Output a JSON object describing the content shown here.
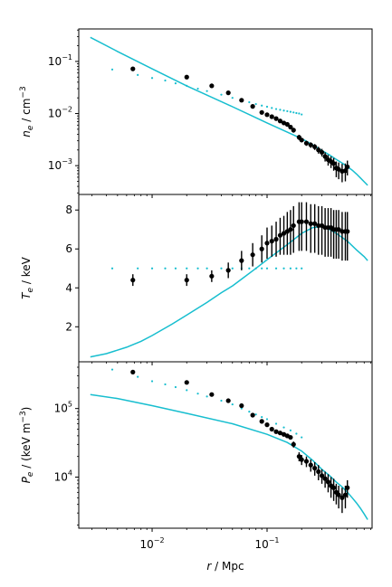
{
  "chart_data": [
    {
      "type": "scatter",
      "panel": "top",
      "ylabel_prefix": "n",
      "ylabel_sub": "e",
      "ylabel_unit": " / cm",
      "ylabel_sup": "−3",
      "yscale": "log",
      "xscale": "log",
      "xlim": [
        0.0023,
        0.82
      ],
      "ylim": [
        0.00028,
        0.42
      ],
      "yticks": [
        {
          "value": 0.1,
          "base": "10",
          "exp": "−1"
        },
        {
          "value": 0.01,
          "base": "10",
          "exp": "−2"
        },
        {
          "value": 0.001,
          "base": "10",
          "exp": "−3"
        }
      ],
      "series": [
        {
          "kind": "model_line",
          "color": "#17becf",
          "x": [
            0.0029,
            0.005,
            0.01,
            0.02,
            0.05,
            0.1,
            0.15,
            0.2,
            0.22,
            0.25,
            0.3,
            0.35,
            0.4,
            0.45,
            0.5,
            0.55,
            0.6,
            0.65,
            0.7,
            0.75
          ],
          "y": [
            0.29,
            0.155,
            0.072,
            0.034,
            0.0135,
            0.0066,
            0.0044,
            0.0033,
            0.00295,
            0.0025,
            0.00195,
            0.0016,
            0.00132,
            0.00112,
            0.00096,
            0.00082,
            0.00069,
            0.00058,
            0.00049,
            0.00042
          ]
        },
        {
          "kind": "model_points",
          "color": "#17becf",
          "x": [
            0.0045,
            0.0075,
            0.01,
            0.013,
            0.016,
            0.02,
            0.025,
            0.03,
            0.04,
            0.05,
            0.06,
            0.07,
            0.08,
            0.09,
            0.1,
            0.11,
            0.12,
            0.13,
            0.14,
            0.15,
            0.16,
            0.17,
            0.18,
            0.19,
            0.2
          ],
          "y": [
            0.07,
            0.055,
            0.048,
            0.043,
            0.038,
            0.034,
            0.03,
            0.027,
            0.023,
            0.02,
            0.018,
            0.0165,
            0.0152,
            0.0142,
            0.0135,
            0.0128,
            0.0122,
            0.0118,
            0.0114,
            0.0111,
            0.0108,
            0.0105,
            0.0102,
            0.01,
            0.0096
          ]
        },
        {
          "kind": "data",
          "color": "#000000",
          "x": [
            0.0068,
            0.02,
            0.033,
            0.046,
            0.06,
            0.075,
            0.09,
            0.1,
            0.11,
            0.12,
            0.13,
            0.14,
            0.15,
            0.16,
            0.17,
            0.19,
            0.2,
            0.22,
            0.24,
            0.26,
            0.28,
            0.3,
            0.32,
            0.34,
            0.36,
            0.38,
            0.4,
            0.42,
            0.45,
            0.48,
            0.5
          ],
          "y": [
            0.072,
            0.05,
            0.034,
            0.025,
            0.018,
            0.0137,
            0.0105,
            0.0095,
            0.0087,
            0.008,
            0.0072,
            0.0066,
            0.0062,
            0.0055,
            0.0048,
            0.0035,
            0.0031,
            0.0027,
            0.0025,
            0.0023,
            0.002,
            0.0018,
            0.0015,
            0.0013,
            0.0012,
            0.0011,
            0.0009,
            0.00085,
            0.00078,
            0.0008,
            0.00095
          ],
          "err_lo": [
            0,
            0,
            0,
            0,
            0,
            0,
            0,
            0,
            0,
            0,
            0,
            0,
            0,
            0.0005,
            0.0005,
            0.0004,
            0.0003,
            0.0003,
            0.0003,
            0.0003,
            0.0003,
            0.0003,
            0.0003,
            0.0003,
            0.0003,
            0.0003,
            0.0003,
            0.0003,
            0.0003,
            0.0003,
            0.0003
          ],
          "err_hi": [
            0,
            0,
            0,
            0,
            0,
            0,
            0,
            0,
            0,
            0,
            0,
            0,
            0,
            0.0005,
            0.0005,
            0.0004,
            0.0003,
            0.0003,
            0.0003,
            0.0003,
            0.0003,
            0.0003,
            0.0003,
            0.0003,
            0.0003,
            0.0003,
            0.0003,
            0.0003,
            0.0003,
            0.0003,
            0.0003
          ]
        }
      ]
    },
    {
      "type": "scatter",
      "panel": "middle",
      "ylabel_prefix": "T",
      "ylabel_sub": "e",
      "ylabel_unit": " / keV",
      "yscale": "linear",
      "xscale": "log",
      "xlim": [
        0.0023,
        0.82
      ],
      "ylim": [
        0.2,
        8.8
      ],
      "yticks": [
        {
          "value": 2,
          "label": "2"
        },
        {
          "value": 4,
          "label": "4"
        },
        {
          "value": 6,
          "label": "6"
        },
        {
          "value": 8,
          "label": "8"
        }
      ],
      "series": [
        {
          "kind": "model_line",
          "color": "#17becf",
          "x": [
            0.0029,
            0.004,
            0.006,
            0.008,
            0.01,
            0.015,
            0.02,
            0.03,
            0.04,
            0.05,
            0.06,
            0.08,
            0.1,
            0.13,
            0.16,
            0.2,
            0.25,
            0.3,
            0.35,
            0.4,
            0.5,
            0.6,
            0.7,
            0.75
          ],
          "y": [
            0.45,
            0.62,
            0.95,
            1.25,
            1.55,
            2.15,
            2.6,
            3.25,
            3.75,
            4.1,
            4.45,
            5.0,
            5.45,
            5.95,
            6.35,
            6.8,
            7.1,
            7.15,
            7.0,
            6.8,
            6.4,
            5.95,
            5.6,
            5.4
          ]
        },
        {
          "kind": "model_points",
          "color": "#17becf",
          "x": [
            0.0045,
            0.0075,
            0.01,
            0.013,
            0.016,
            0.02,
            0.025,
            0.03,
            0.04,
            0.05,
            0.06,
            0.07,
            0.08,
            0.09,
            0.1,
            0.12,
            0.14,
            0.16,
            0.18,
            0.2
          ],
          "y": [
            5.0,
            5.0,
            5.0,
            5.0,
            5.0,
            5.0,
            5.0,
            5.0,
            5.0,
            5.0,
            5.0,
            5.0,
            5.0,
            5.0,
            5.0,
            5.0,
            5.0,
            5.0,
            5.0,
            5.0
          ]
        },
        {
          "kind": "data",
          "color": "#000000",
          "x": [
            0.0068,
            0.02,
            0.033,
            0.046,
            0.06,
            0.075,
            0.09,
            0.1,
            0.11,
            0.12,
            0.13,
            0.14,
            0.15,
            0.16,
            0.17,
            0.19,
            0.2,
            0.22,
            0.24,
            0.26,
            0.28,
            0.3,
            0.32,
            0.34,
            0.36,
            0.38,
            0.4,
            0.42,
            0.45,
            0.48,
            0.5
          ],
          "y": [
            4.4,
            4.4,
            4.6,
            4.9,
            5.4,
            5.7,
            6.0,
            6.3,
            6.4,
            6.5,
            6.7,
            6.8,
            6.9,
            7.0,
            7.2,
            7.4,
            7.4,
            7.4,
            7.3,
            7.3,
            7.2,
            7.2,
            7.1,
            7.1,
            7.1,
            7.0,
            7.0,
            7.0,
            6.9,
            6.9,
            6.9
          ],
          "err_lo": [
            0.3,
            0.3,
            0.3,
            0.4,
            0.5,
            0.6,
            0.7,
            0.8,
            0.8,
            0.9,
            1.0,
            1.1,
            1.2,
            1.3,
            1.4,
            1.5,
            1.5,
            1.5,
            1.5,
            1.5,
            1.5,
            1.5,
            1.5,
            1.5,
            1.5,
            1.5,
            1.5,
            1.5,
            1.5,
            1.5,
            1.5
          ],
          "err_hi": [
            0.3,
            0.3,
            0.3,
            0.4,
            0.5,
            0.6,
            0.7,
            0.8,
            0.8,
            0.9,
            0.9,
            0.9,
            1.0,
            1.0,
            1.0,
            1.0,
            1.0,
            1.0,
            1.0,
            1.0,
            1.0,
            1.0,
            1.0,
            1.0,
            1.0,
            1.0,
            1.0,
            1.0,
            1.0,
            1.0,
            1.0
          ]
        }
      ]
    },
    {
      "type": "scatter",
      "panel": "bottom",
      "ylabel_prefix": "P",
      "ylabel_sub": "e",
      "ylabel_unit": " / (keV m",
      "ylabel_sup": "−3",
      "ylabel_close": ")",
      "yscale": "log",
      "xscale": "log",
      "xlim": [
        0.0023,
        0.82
      ],
      "ylim": [
        1800,
        480000
      ],
      "yticks": [
        {
          "value": 100000,
          "base": "10",
          "exp": "5"
        },
        {
          "value": 10000,
          "base": "10",
          "exp": "4"
        }
      ],
      "xticks": [
        {
          "value": 0.01,
          "base": "10",
          "exp": "−2"
        },
        {
          "value": 0.1,
          "base": "10",
          "exp": "−1"
        }
      ],
      "xlabel": "r",
      "xlabel_unit": " / Mpc",
      "series": [
        {
          "kind": "model_line",
          "color": "#17becf",
          "x": [
            0.0029,
            0.005,
            0.01,
            0.02,
            0.05,
            0.1,
            0.15,
            0.2,
            0.25,
            0.3,
            0.35,
            0.4,
            0.45,
            0.5,
            0.55,
            0.6,
            0.65,
            0.7,
            0.75
          ],
          "y": [
            160000,
            140000,
            110000,
            85000,
            60000,
            42000,
            32000,
            24000,
            17500,
            13000,
            10500,
            8500,
            7200,
            6000,
            5000,
            4200,
            3500,
            2900,
            2400
          ]
        },
        {
          "kind": "model_points",
          "color": "#17becf",
          "x": [
            0.0045,
            0.0075,
            0.01,
            0.013,
            0.016,
            0.02,
            0.025,
            0.03,
            0.04,
            0.05,
            0.06,
            0.07,
            0.08,
            0.09,
            0.1,
            0.12,
            0.14,
            0.16,
            0.18,
            0.2
          ],
          "y": [
            370000,
            290000,
            250000,
            225000,
            205000,
            185000,
            165000,
            150000,
            130000,
            115000,
            100000,
            90000,
            82000,
            75000,
            70000,
            60000,
            53000,
            48000,
            43000,
            38000
          ]
        },
        {
          "kind": "data",
          "color": "#000000",
          "x": [
            0.0068,
            0.02,
            0.033,
            0.046,
            0.06,
            0.075,
            0.09,
            0.1,
            0.11,
            0.12,
            0.13,
            0.14,
            0.15,
            0.16,
            0.17,
            0.19,
            0.2,
            0.22,
            0.24,
            0.26,
            0.28,
            0.3,
            0.32,
            0.34,
            0.36,
            0.38,
            0.4,
            0.42,
            0.45,
            0.48,
            0.5
          ],
          "y": [
            340000,
            240000,
            160000,
            130000,
            110000,
            80000,
            65000,
            58000,
            50000,
            46000,
            44000,
            42000,
            40000,
            38000,
            30000,
            20000,
            18000,
            17000,
            15000,
            13500,
            12000,
            10500,
            9500,
            8500,
            7500,
            7000,
            6000,
            5500,
            5000,
            5500,
            7000
          ],
          "err_lo": [
            0,
            0,
            0,
            0,
            0,
            0,
            0,
            0,
            0,
            0,
            0,
            0,
            0,
            0,
            3000,
            3000,
            3000,
            3000,
            3000,
            3000,
            3000,
            2500,
            2500,
            2500,
            2500,
            2500,
            2000,
            2000,
            2000,
            2000,
            2000
          ],
          "err_hi": [
            0,
            0,
            0,
            0,
            0,
            0,
            0,
            0,
            0,
            0,
            0,
            0,
            0,
            0,
            3000,
            3000,
            3000,
            3000,
            3000,
            3000,
            3000,
            2500,
            2500,
            2500,
            2500,
            2500,
            2000,
            2000,
            2000,
            2000,
            2000
          ]
        }
      ]
    }
  ]
}
